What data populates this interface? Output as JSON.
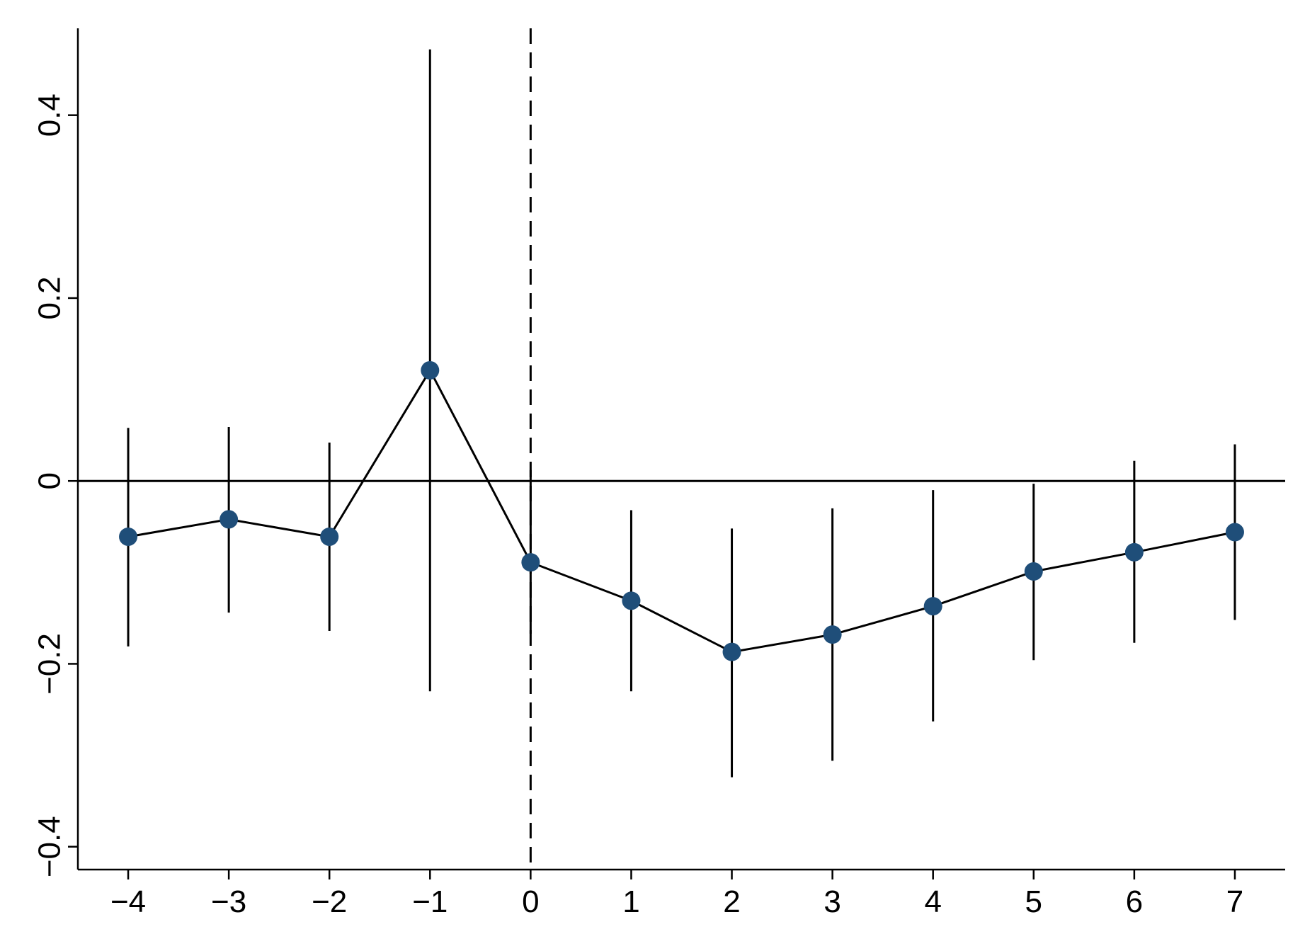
{
  "chart_data": {
    "type": "scatter",
    "title": "",
    "xlabel": "",
    "ylabel": "",
    "x": [
      -4,
      -3,
      -2,
      -1,
      0,
      1,
      2,
      3,
      4,
      5,
      6,
      7
    ],
    "series": [
      {
        "values": [
          -0.061,
          -0.042,
          -0.061,
          0.121,
          -0.089,
          -0.131,
          -0.187,
          -0.168,
          -0.137,
          -0.099,
          -0.078,
          -0.056
        ],
        "ci_lower": [
          -0.181,
          -0.144,
          -0.164,
          -0.23,
          -0.167,
          -0.23,
          -0.324,
          -0.306,
          -0.263,
          -0.196,
          -0.177,
          -0.152
        ],
        "ci_upper": [
          0.058,
          0.059,
          0.042,
          0.472,
          0.012,
          -0.032,
          -0.052,
          -0.03,
          -0.01,
          -0.003,
          0.022,
          0.04
        ]
      }
    ],
    "xlim": [
      -4.5,
      7.5
    ],
    "ylim": [
      -0.425,
      0.495
    ],
    "x_ticks": [
      -4,
      -3,
      -2,
      -1,
      0,
      1,
      2,
      3,
      4,
      5,
      6,
      7
    ],
    "x_tick_labels": [
      "−4",
      "−3",
      "−2",
      "−1",
      "0",
      "1",
      "2",
      "3",
      "4",
      "5",
      "6",
      "7"
    ],
    "y_ticks": [
      -0.4,
      -0.2,
      0,
      0.2,
      0.4
    ],
    "y_tick_labels": [
      "−0.4",
      "−0.2",
      "0",
      "0.2",
      "0.4"
    ],
    "reference_lines": {
      "horizontal_y": 0,
      "vertical_dashed_x": 0
    },
    "grid": false,
    "legend": "none",
    "colors": {
      "marker": "#1f4e79",
      "line": "#000000",
      "axes": "#000000"
    }
  }
}
